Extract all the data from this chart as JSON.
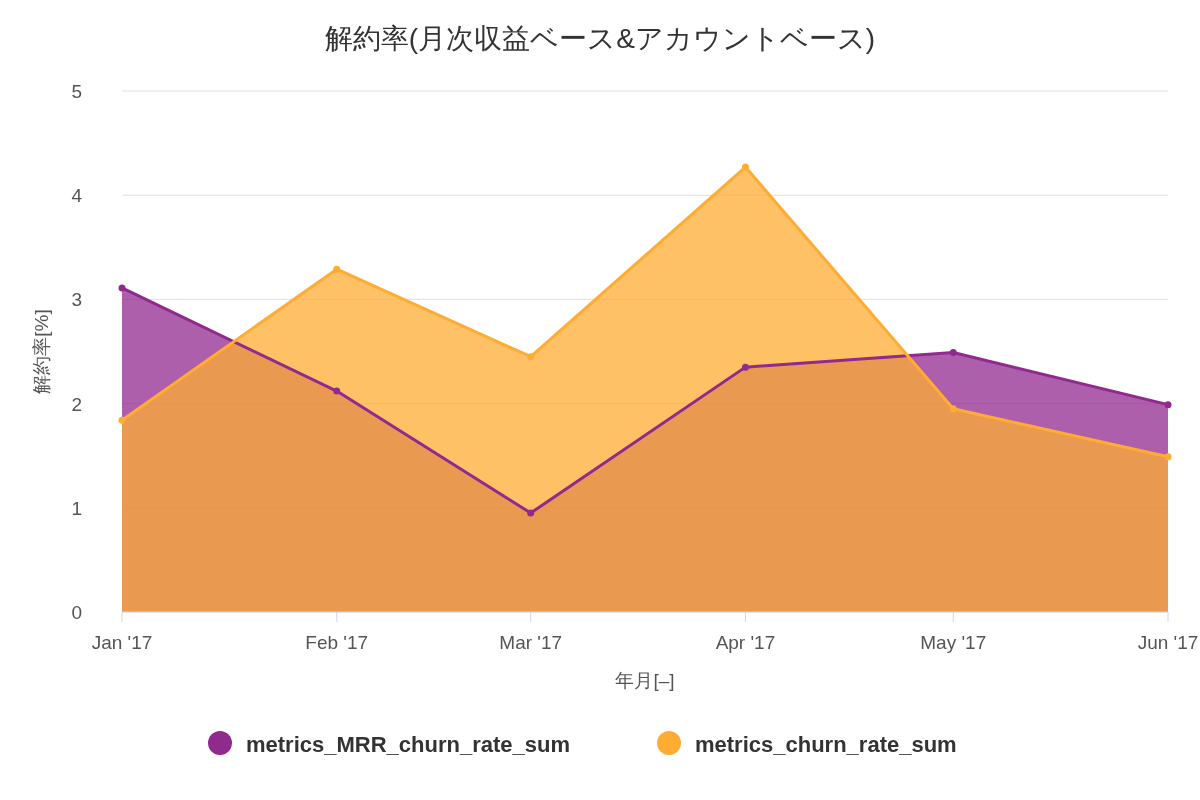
{
  "chart_data": {
    "type": "area",
    "title": "解約率(月次収益ベース&アカウントベース)",
    "xlabel": "年月[–]",
    "ylabel": "解約率[%]",
    "x": [
      "2017-01",
      "2017-02",
      "2017-03",
      "2017-04",
      "2017-05",
      "2017-06"
    ],
    "xlim": [
      "2017-01",
      "2017-06"
    ],
    "xticks": [
      {
        "value": "2017-01",
        "label": "Jan '17"
      },
      {
        "value": "2017-02",
        "label": "Feb '17"
      },
      {
        "value": "2017-03",
        "label": "Mar '17"
      },
      {
        "value": "2017-04",
        "label": "Apr '17"
      },
      {
        "value": "2017-05",
        "label": "May '17"
      },
      {
        "value": "2017-06",
        "label": "Jun '17"
      }
    ],
    "ylim": [
      0,
      5
    ],
    "yticks": [
      0,
      1,
      2,
      3,
      4,
      5
    ],
    "grid": "y",
    "marker": "circle",
    "legend": "bottom",
    "series": [
      {
        "name": "metrics_MRR_churn_rate_sum",
        "color": "#912a8f",
        "values": [
          3.11,
          2.12,
          0.95,
          2.35,
          2.49,
          1.99
        ]
      },
      {
        "name": "metrics_churn_rate_sum",
        "color": "#ffac33",
        "values": [
          1.84,
          3.29,
          2.45,
          4.27,
          1.95,
          1.49
        ]
      }
    ]
  }
}
